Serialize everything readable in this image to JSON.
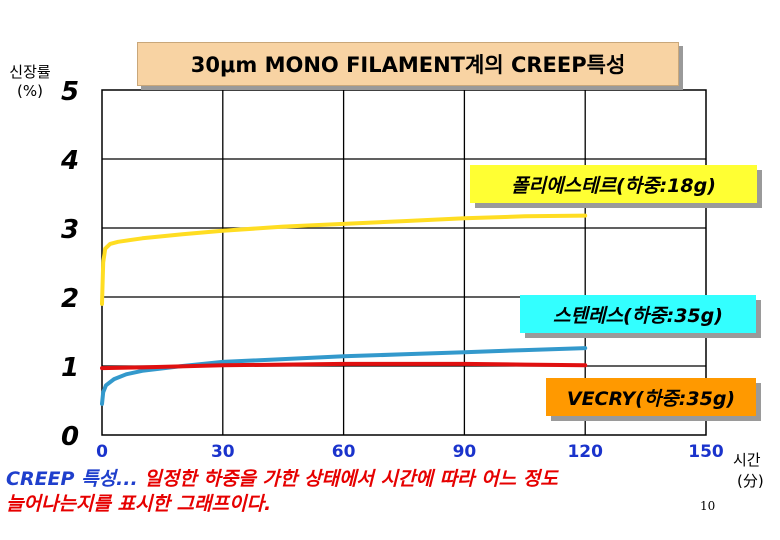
{
  "title": "30μm MONO FILAMENT계의 CREEP특성",
  "y_axis_label": "신장률",
  "y_axis_unit": "(%)",
  "x_axis_label": "시간",
  "x_axis_unit": "(分)",
  "series_labels": {
    "polyester": "폴리에스테르(하중:18g)",
    "stainless": "스텐레스(하중:35g)",
    "vecry": "VECRY(하중:35g)"
  },
  "caption": {
    "keyword": "CREEP 특성...",
    "line1_rest": " 일정한 하중을 가한 상태에서 시간에 따라 어느 정도",
    "line2": "늘어나는지를 표시한 그래프이다."
  },
  "page_number": "10",
  "chart_data": {
    "type": "line",
    "title": "30μm MONO FILAMENT계의 CREEP특성",
    "xlabel": "시간 (分)",
    "ylabel": "신장률 (%)",
    "xlim": [
      0,
      150
    ],
    "ylim": [
      0,
      5
    ],
    "x_ticks": [
      0,
      30,
      60,
      90,
      120,
      150
    ],
    "y_ticks": [
      0,
      1,
      2,
      3,
      4,
      5
    ],
    "grid": true,
    "series": [
      {
        "name": "폴리에스테르(하중:18g)",
        "color": "#ffdd22",
        "x": [
          0,
          0.3,
          0.8,
          2,
          4,
          10,
          20,
          30,
          45,
          60,
          75,
          90,
          105,
          120
        ],
        "values": [
          1.9,
          2.5,
          2.7,
          2.77,
          2.8,
          2.85,
          2.91,
          2.96,
          3.02,
          3.06,
          3.1,
          3.14,
          3.17,
          3.18
        ]
      },
      {
        "name": "스텐레스(하중:35g)",
        "color": "#3399cc",
        "x": [
          0,
          0.3,
          1,
          3,
          6,
          10,
          20,
          30,
          45,
          60,
          75,
          90,
          105,
          120
        ],
        "values": [
          0.45,
          0.62,
          0.72,
          0.81,
          0.88,
          0.93,
          1.0,
          1.06,
          1.1,
          1.14,
          1.17,
          1.2,
          1.23,
          1.26
        ]
      },
      {
        "name": "VECRY(하중:35g)",
        "color": "#e01010",
        "x": [
          0,
          10,
          30,
          45,
          60,
          75,
          90,
          105,
          120
        ],
        "values": [
          0.97,
          0.98,
          1.01,
          1.02,
          1.03,
          1.03,
          1.03,
          1.02,
          1.01
        ]
      }
    ]
  }
}
